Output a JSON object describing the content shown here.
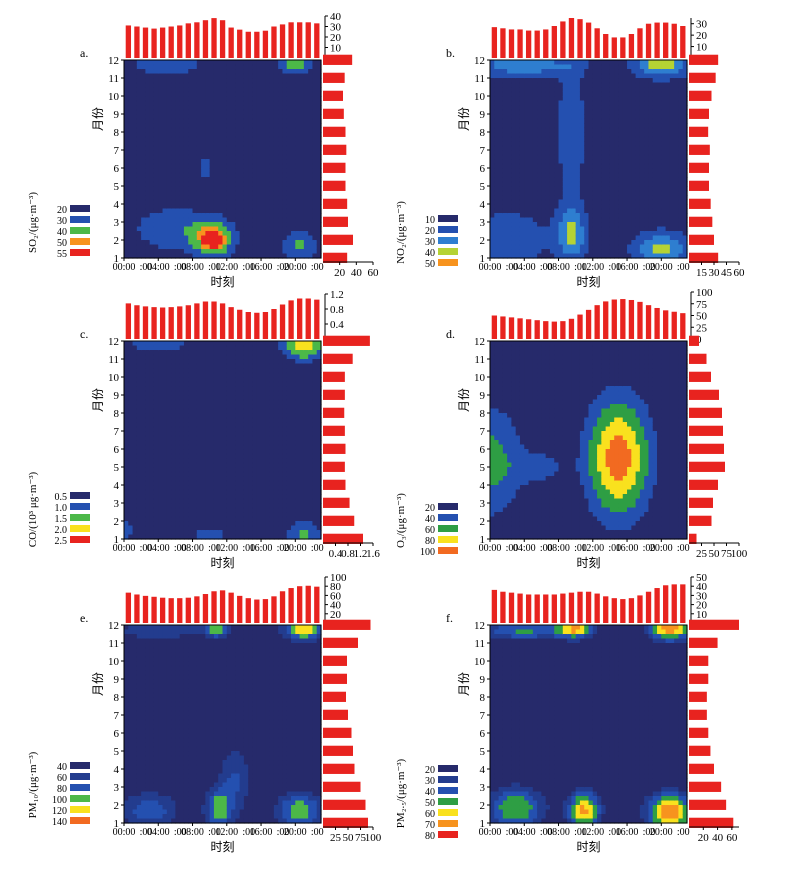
{
  "chart_data": [
    {
      "type": "heatmap",
      "panel_label": "a.",
      "pollutant": "SO2",
      "legend_title": "SO₂/(μg·m⁻³)",
      "legend_levels": [
        "20",
        "30",
        "40",
        "50",
        "55"
      ],
      "legend_colors": [
        "#262a6b",
        "#2450b0",
        "#4cb848",
        "#f7931e",
        "#e8231f"
      ],
      "xlabel": "时刻",
      "ylabel": "月份",
      "x_ticks": [
        "00:00",
        "04:00",
        "08:00",
        "12:00",
        "16:00",
        "20:00"
      ],
      "y_ticks": [
        "1",
        "2",
        "3",
        "4",
        "5",
        "6",
        "7",
        "8",
        "9",
        "10",
        "11",
        "12"
      ],
      "hourly_values": [
        31,
        30,
        29,
        28,
        29,
        30,
        31,
        33,
        34,
        36,
        38,
        36,
        29,
        27,
        25,
        25,
        26,
        30,
        32,
        34,
        34,
        34,
        33
      ],
      "hourly_ticks": [
        "0",
        "10",
        "20",
        "30",
        "40"
      ],
      "hourly_max": 40,
      "monthly_values": [
        29,
        36,
        30,
        29,
        27,
        27,
        28,
        27,
        25,
        24,
        26,
        35
      ],
      "monthly_ticks": [
        "20",
        "40",
        "60"
      ],
      "monthly_max": 60,
      "hotspots": [
        {
          "h": 10.5,
          "m": 2,
          "v": 55,
          "sx": 1.6,
          "sy": 0.7
        },
        {
          "h": 6,
          "m": 2.6,
          "v": 38,
          "sx": 4,
          "sy": 1
        },
        {
          "h": 9.5,
          "m": 6,
          "v": 38,
          "sx": 0.7,
          "sy": 0.4
        },
        {
          "h": 20.5,
          "m": 1.7,
          "v": 42,
          "sx": 1.6,
          "sy": 0.6
        },
        {
          "h": 20,
          "m": 11.8,
          "v": 50,
          "sx": 1.4,
          "sy": 0.4
        },
        {
          "h": 5,
          "m": 11.7,
          "v": 40,
          "sx": 3,
          "sy": 0.4
        }
      ],
      "base_value": 20
    },
    {
      "type": "heatmap",
      "panel_label": "b.",
      "pollutant": "NO2",
      "legend_title": "NO₂/(μg·m⁻³)",
      "legend_levels": [
        "10",
        "20",
        "30",
        "40",
        "50"
      ],
      "legend_colors": [
        "#262a6b",
        "#2450b0",
        "#2e7ed0",
        "#b5d334",
        "#f7931e"
      ],
      "xlabel": "时刻",
      "ylabel": "月份",
      "x_ticks": [
        "00:00",
        "04:00",
        "08:00",
        "12:00",
        "16:00",
        "20:00"
      ],
      "y_ticks": [
        "1",
        "2",
        "3",
        "4",
        "5",
        "6",
        "7",
        "8",
        "9",
        "10",
        "11",
        "12"
      ],
      "hourly_values": [
        27,
        26,
        25,
        25,
        24,
        24,
        25,
        28,
        32,
        35,
        34,
        31,
        26,
        21,
        18,
        18,
        21,
        26,
        30,
        31,
        31,
        30,
        28
      ],
      "hourly_ticks": [
        "10",
        "20",
        "30"
      ],
      "hourly_max": 35,
      "monthly_values": [
        35,
        30,
        28,
        26,
        24,
        24,
        25,
        23,
        24,
        27,
        32,
        35
      ],
      "monthly_ticks": [
        "15",
        "30",
        "45",
        "60"
      ],
      "monthly_max": 60,
      "hotspots": [
        {
          "h": 9.5,
          "m": 2.3,
          "v": 42,
          "sx": 1.2,
          "sy": 1
        },
        {
          "h": 9.5,
          "m": 8,
          "v": 28,
          "sx": 1,
          "sy": 3
        },
        {
          "h": 20,
          "m": 1.5,
          "v": 45,
          "sx": 2,
          "sy": 0.6
        },
        {
          "h": 20,
          "m": 11.8,
          "v": 48,
          "sx": 2,
          "sy": 0.5
        },
        {
          "h": 4,
          "m": 11.7,
          "v": 38,
          "sx": 4,
          "sy": 0.4
        },
        {
          "h": 2,
          "m": 2,
          "v": 30,
          "sx": 3,
          "sy": 1
        }
      ],
      "base_value": 15
    },
    {
      "type": "heatmap",
      "panel_label": "c.",
      "pollutant": "CO",
      "legend_title": "CO/(10³ μg·m⁻³)",
      "legend_levels": [
        "0.5",
        "1.0",
        "1.5",
        "2.0",
        "2.5"
      ],
      "legend_colors": [
        "#262a6b",
        "#2450b0",
        "#4cb848",
        "#f9e11e",
        "#e8231f"
      ],
      "xlabel": "时刻",
      "ylabel": "月份",
      "x_ticks": [
        "00:00",
        "04:00",
        "08:00",
        "12:00",
        "16:00",
        "20:00"
      ],
      "y_ticks": [
        "1",
        "2",
        "3",
        "4",
        "5",
        "6",
        "7",
        "8",
        "9",
        "10",
        "11",
        "12"
      ],
      "hourly_values": [
        0.95,
        0.9,
        0.87,
        0.85,
        0.84,
        0.85,
        0.87,
        0.9,
        0.95,
        1.0,
        1.0,
        0.95,
        0.85,
        0.78,
        0.72,
        0.7,
        0.72,
        0.8,
        0.92,
        1.03,
        1.08,
        1.08,
        1.05
      ],
      "hourly_ticks": [
        "0",
        "0.4",
        "0.8",
        "1.2"
      ],
      "hourly_max": 1.2,
      "monthly_values": [
        1.28,
        1.0,
        0.85,
        0.72,
        0.7,
        0.72,
        0.7,
        0.68,
        0.7,
        0.7,
        0.95,
        1.5
      ],
      "monthly_ticks": [
        "0.4",
        "0.8",
        "1.2",
        "1.6"
      ],
      "monthly_max": 1.6,
      "hotspots": [
        {
          "h": 21,
          "m": 11.8,
          "v": 2.4,
          "sx": 1.8,
          "sy": 0.6
        },
        {
          "h": 4,
          "m": 11.8,
          "v": 1.1,
          "sx": 5,
          "sy": 0.5
        },
        {
          "h": 10,
          "m": 1.2,
          "v": 1.2,
          "sx": 2,
          "sy": 0.5
        },
        {
          "h": 0,
          "m": 1.5,
          "v": 1.1,
          "sx": 2,
          "sy": 0.7
        },
        {
          "h": 21,
          "m": 1.3,
          "v": 1.6,
          "sx": 1.5,
          "sy": 0.6
        }
      ],
      "base_value": 0.5
    },
    {
      "type": "heatmap",
      "panel_label": "d.",
      "pollutant": "O3",
      "legend_title": "O₃/(μg·m⁻³)",
      "legend_levels": [
        "20",
        "40",
        "60",
        "80",
        "100"
      ],
      "legend_colors": [
        "#262a6b",
        "#2450b0",
        "#2e9e44",
        "#f9e11e",
        "#f26a21"
      ],
      "xlabel": "时刻",
      "ylabel": "月份",
      "x_ticks": [
        "00:00",
        "04:00",
        "08:00",
        "12:00",
        "16:00",
        "20:00"
      ],
      "y_ticks": [
        "1",
        "2",
        "3",
        "4",
        "5",
        "6",
        "7",
        "8",
        "9",
        "10",
        "11",
        "12"
      ],
      "hourly_values": [
        50,
        48,
        46,
        44,
        42,
        40,
        38,
        37,
        38,
        43,
        52,
        62,
        72,
        80,
        84,
        85,
        83,
        79,
        72,
        66,
        61,
        58,
        55
      ],
      "hourly_ticks": [
        "0",
        "25",
        "50",
        "75",
        "100"
      ],
      "hourly_max": 100,
      "monthly_values": [
        15,
        45,
        48,
        58,
        72,
        70,
        68,
        66,
        60,
        44,
        35,
        20
      ],
      "monthly_ticks": [
        "25",
        "50",
        "75",
        "100"
      ],
      "monthly_max": 100,
      "hotspots": [
        {
          "h": 15,
          "m": 5.5,
          "v": 110,
          "sx": 2.8,
          "sy": 2.5
        },
        {
          "h": 0,
          "m": 5.3,
          "v": 68,
          "sx": 3,
          "sy": 2.4
        },
        {
          "h": 6,
          "m": 5,
          "v": 48,
          "sx": 2,
          "sy": 0.6
        }
      ],
      "base_value": 15
    },
    {
      "type": "heatmap",
      "panel_label": "e.",
      "pollutant": "PM10",
      "legend_title": "PM₁₀/(μg·m⁻³)",
      "legend_levels": [
        "40",
        "60",
        "80",
        "100",
        "120",
        "140"
      ],
      "legend_colors": [
        "#262a6b",
        "#233c8e",
        "#2450b0",
        "#4cb848",
        "#f9e11e",
        "#f26a21"
      ],
      "xlabel": "时刻",
      "ylabel": "月份",
      "x_ticks": [
        "00:00",
        "04:00",
        "08:00",
        "12:00",
        "16:00",
        "20:00"
      ],
      "y_ticks": [
        "1",
        "2",
        "3",
        "4",
        "5",
        "6",
        "7",
        "8",
        "9",
        "10",
        "11",
        "12"
      ],
      "hourly_values": [
        66,
        62,
        59,
        57,
        55,
        54,
        54,
        55,
        58,
        63,
        69,
        71,
        66,
        59,
        54,
        51,
        52,
        58,
        69,
        76,
        80,
        81,
        79
      ],
      "hourly_ticks": [
        "0",
        "20",
        "40",
        "60",
        "80",
        "100"
      ],
      "hourly_max": 100,
      "monthly_values": [
        90,
        85,
        75,
        63,
        60,
        57,
        50,
        46,
        48,
        48,
        70,
        95
      ],
      "monthly_ticks": [
        "25",
        "50",
        "75",
        "100"
      ],
      "monthly_max": 100,
      "hotspots": [
        {
          "h": 21,
          "m": 11.8,
          "v": 135,
          "sx": 1.8,
          "sy": 0.5
        },
        {
          "h": 11,
          "m": 11.8,
          "v": 105,
          "sx": 1.2,
          "sy": 0.4
        },
        {
          "h": 4,
          "m": 11.7,
          "v": 80,
          "sx": 4,
          "sy": 0.4
        },
        {
          "h": 11,
          "m": 1.7,
          "v": 108,
          "sx": 1.2,
          "sy": 0.9
        },
        {
          "h": 20.5,
          "m": 1.7,
          "v": 115,
          "sx": 2,
          "sy": 0.8
        },
        {
          "h": 3,
          "m": 1.7,
          "v": 95,
          "sx": 2.5,
          "sy": 0.8
        },
        {
          "h": 13,
          "m": 3.5,
          "v": 80,
          "sx": 1.5,
          "sy": 1.5
        }
      ],
      "base_value": 30
    },
    {
      "type": "heatmap",
      "panel_label": "f.",
      "pollutant": "PM2.5",
      "legend_title": "PM₂.₅/(μg·m⁻³)",
      "legend_levels": [
        "20",
        "30",
        "40",
        "50",
        "60",
        "70",
        "80"
      ],
      "legend_colors": [
        "#262a6b",
        "#233c8e",
        "#2450b0",
        "#2e9e44",
        "#f9e11e",
        "#f7931e",
        "#e8231f"
      ],
      "xlabel": "时刻",
      "ylabel": "月份",
      "x_ticks": [
        "00:00",
        "04:00",
        "08:00",
        "12:00",
        "16:00",
        "20:00"
      ],
      "y_ticks": [
        "1",
        "2",
        "3",
        "4",
        "5",
        "6",
        "7",
        "8",
        "9",
        "10",
        "11",
        "12"
      ],
      "hourly_values": [
        36,
        34,
        33,
        32,
        31,
        31,
        31,
        31,
        32,
        33,
        34,
        34,
        32,
        29,
        27,
        26,
        27,
        30,
        34,
        38,
        41,
        42,
        42
      ],
      "hourly_ticks": [
        "0",
        "10",
        "20",
        "30",
        "40",
        "50"
      ],
      "hourly_max": 50,
      "monthly_values": [
        62,
        52,
        45,
        35,
        30,
        27,
        25,
        25,
        27,
        27,
        40,
        70
      ],
      "monthly_ticks": [
        "20",
        "40",
        "60"
      ],
      "monthly_max": 70,
      "hotspots": [
        {
          "h": 21,
          "m": 11.8,
          "v": 78,
          "sx": 1.8,
          "sy": 0.5
        },
        {
          "h": 10,
          "m": 11.8,
          "v": 62,
          "sx": 1.5,
          "sy": 0.4
        },
        {
          "h": 4,
          "m": 11.7,
          "v": 52,
          "sx": 4,
          "sy": 0.4
        },
        {
          "h": 11,
          "m": 1.7,
          "v": 72,
          "sx": 1.4,
          "sy": 0.8
        },
        {
          "h": 21,
          "m": 1.6,
          "v": 78,
          "sx": 2,
          "sy": 0.8
        },
        {
          "h": 3,
          "m": 1.8,
          "v": 60,
          "sx": 2.5,
          "sy": 0.9
        }
      ],
      "base_value": 15
    }
  ]
}
